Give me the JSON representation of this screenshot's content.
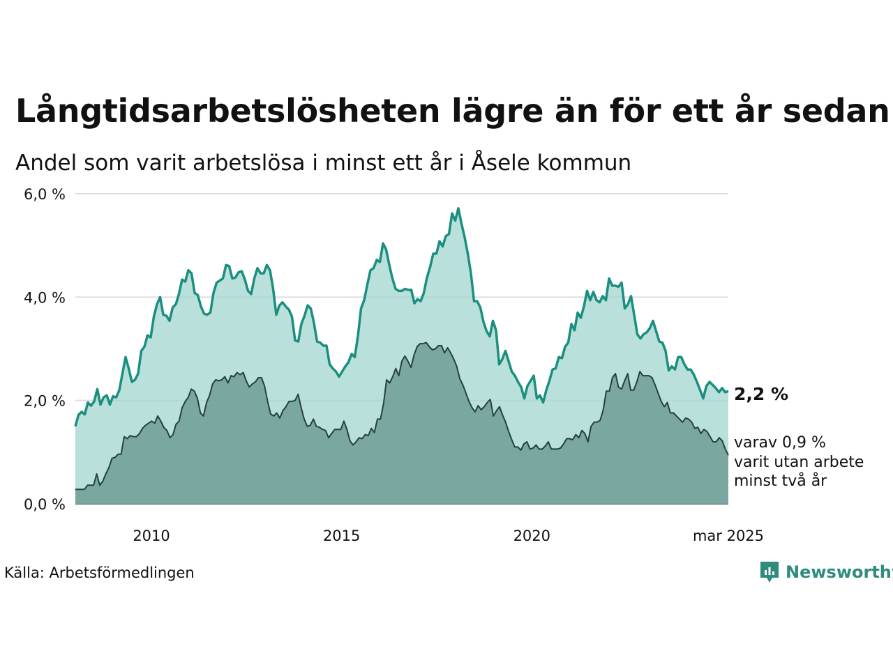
{
  "title": "Långtidsarbetslösheten lägre än för ett år sedan",
  "subtitle": "Andel som varit arbetslösa i minst ett år i Åsele kommun",
  "source": "Källa: Arbetsförmedlingen",
  "brand": "Newsworthy",
  "colors": {
    "line1": "#1a8f7f",
    "fill1": "#a3d5cf",
    "line2": "#24413d",
    "fill2": "#6f9e97",
    "grid": "#dddddd",
    "brand": "#2e8b7e"
  },
  "annotations": {
    "last_value_label": "2,2 %",
    "sub_label_lines": [
      "varav 0,9 %",
      "varit utan arbete",
      "minst två år"
    ]
  },
  "chart_data": {
    "type": "area",
    "x_ticks": [
      {
        "date": "2010-01",
        "label": "2010"
      },
      {
        "date": "2015-01",
        "label": "2015"
      },
      {
        "date": "2020-01",
        "label": "2020"
      },
      {
        "date": "2025-03",
        "label": "mar 2025"
      }
    ],
    "y_ticks": [
      {
        "value": 0,
        "label": "0,0 %"
      },
      {
        "value": 2,
        "label": "2,0 %"
      },
      {
        "value": 4,
        "label": "4,0 %"
      },
      {
        "value": 6,
        "label": "6,0 %"
      }
    ],
    "ylim": [
      0,
      6
    ],
    "grid": true,
    "x_start": "2008-01",
    "x_end": "2025-03",
    "series": [
      {
        "name": "",
        "values": [
          [
            1.5,
            1.72,
            1.78,
            1.73,
            1.96,
            1.9,
            1.98,
            2.22,
            1.92,
            2.06,
            2.1,
            1.92,
            2.08,
            2.06,
            2.2,
            2.52,
            2.84,
            2.62,
            2.36,
            2.4,
            2.52,
            2.96,
            3.04,
            3.26,
            3.22,
            3.62,
            3.86,
            4.0,
            3.66,
            3.64,
            3.54,
            3.8,
            3.86,
            4.06,
            4.34,
            4.3,
            4.52,
            4.46,
            4.08,
            4.04,
            3.82,
            3.68,
            3.66,
            3.7,
            4.08,
            4.28,
            4.32,
            4.36,
            4.62,
            4.6,
            4.36,
            4.38,
            4.48,
            4.5,
            4.34,
            4.12,
            4.06,
            4.36,
            4.56,
            4.46,
            4.46,
            4.62,
            4.52,
            4.16,
            3.66,
            3.84,
            3.9,
            3.82,
            3.76,
            3.62,
            3.16,
            3.14,
            3.48,
            3.64,
            3.84,
            3.78,
            3.5,
            3.14,
            3.12,
            3.06,
            3.06,
            2.7,
            2.62,
            2.56,
            2.46,
            2.56,
            2.66,
            2.74,
            2.9,
            2.84,
            3.24,
            3.78,
            3.94,
            4.24,
            4.52,
            4.56,
            4.72,
            4.68,
            5.04,
            4.92,
            4.62,
            4.36,
            4.16,
            4.12,
            4.12,
            4.16,
            4.14,
            4.14,
            3.88,
            3.96,
            3.92,
            4.08,
            4.38,
            4.58,
            4.84,
            4.84,
            5.08,
            4.98,
            5.18,
            5.22,
            5.62,
            5.48,
            5.72,
            5.42,
            5.16,
            4.84,
            4.46,
            3.92,
            3.92,
            3.8,
            3.52,
            3.34,
            3.24,
            3.54,
            3.36,
            2.7,
            2.8,
            2.96,
            2.76,
            2.56,
            2.48,
            2.36,
            2.26,
            2.04,
            2.28,
            2.38,
            2.48,
            2.04,
            2.1,
            1.96,
            2.2,
            2.38,
            2.6,
            2.62,
            2.84,
            2.82,
            3.04,
            3.12,
            3.48,
            3.36,
            3.7,
            3.6,
            3.82,
            4.12,
            3.94,
            4.1,
            3.94,
            3.9,
            4.02,
            3.94,
            4.36,
            4.22,
            4.22,
            4.2,
            4.28,
            3.78,
            3.86,
            4.02,
            3.66,
            3.28,
            3.2,
            3.28,
            3.32,
            3.4,
            3.54,
            3.34,
            3.14,
            3.12,
            2.96,
            2.58,
            2.66,
            2.6,
            2.84,
            2.84,
            2.7,
            2.6,
            2.6,
            2.5,
            2.36,
            2.2,
            2.04,
            2.28,
            2.36,
            2.3,
            2.24,
            2.16,
            2.24,
            2.16,
            2.18
          ]
        ]
      },
      {
        "name": "",
        "values": [
          [
            0.28,
            0.28,
            0.28,
            0.28,
            0.36,
            0.36,
            0.36,
            0.58,
            0.36,
            0.44,
            0.58,
            0.7,
            0.88,
            0.9,
            0.96,
            0.96,
            1.3,
            1.26,
            1.32,
            1.3,
            1.3,
            1.36,
            1.46,
            1.52,
            1.56,
            1.6,
            1.56,
            1.7,
            1.6,
            1.48,
            1.42,
            1.28,
            1.34,
            1.54,
            1.6,
            1.86,
            1.98,
            2.06,
            2.22,
            2.18,
            2.04,
            1.76,
            1.7,
            1.96,
            2.1,
            2.32,
            2.4,
            2.38,
            2.4,
            2.46,
            2.34,
            2.48,
            2.46,
            2.54,
            2.5,
            2.54,
            2.38,
            2.26,
            2.32,
            2.36,
            2.44,
            2.44,
            2.28,
            1.98,
            1.74,
            1.7,
            1.76,
            1.66,
            1.8,
            1.88,
            1.98,
            1.98,
            2.0,
            2.12,
            1.86,
            1.64,
            1.5,
            1.52,
            1.64,
            1.5,
            1.48,
            1.44,
            1.42,
            1.28,
            1.36,
            1.44,
            1.44,
            1.44,
            1.6,
            1.44,
            1.22,
            1.14,
            1.2,
            1.28,
            1.26,
            1.34,
            1.32,
            1.46,
            1.38,
            1.64,
            1.64,
            1.94,
            2.4,
            2.34,
            2.46,
            2.62,
            2.48,
            2.76,
            2.86,
            2.76,
            2.64,
            2.88,
            3.04,
            3.1,
            3.1,
            3.12,
            3.04,
            2.98,
            3.0,
            3.06,
            3.06,
            2.92,
            3.02,
            2.92,
            2.8,
            2.66,
            2.42,
            2.3,
            2.14,
            1.98,
            1.86,
            1.78,
            1.9,
            1.82,
            1.88,
            1.96,
            2.02,
            1.7,
            1.8,
            1.88,
            1.72,
            1.58,
            1.4,
            1.24,
            1.1,
            1.1,
            1.04,
            1.16,
            1.2,
            1.06,
            1.08,
            1.14,
            1.06,
            1.06,
            1.12,
            1.2,
            1.06,
            1.06,
            1.06,
            1.08,
            1.16,
            1.26,
            1.26,
            1.24,
            1.34,
            1.28,
            1.42,
            1.36,
            1.2,
            1.5,
            1.58,
            1.58,
            1.62,
            1.82,
            2.18,
            2.18,
            2.44,
            2.52,
            2.26,
            2.22,
            2.38,
            2.52,
            2.2,
            2.2,
            2.36,
            2.56,
            2.48,
            2.48,
            2.48,
            2.44,
            2.3,
            2.14,
            1.98,
            1.88,
            1.96,
            1.76,
            1.76,
            1.7,
            1.64,
            1.58,
            1.66,
            1.64,
            1.58,
            1.46,
            1.48,
            1.36,
            1.44,
            1.4,
            1.3,
            1.2,
            1.2,
            1.28,
            1.22,
            1.06,
            0.94
          ]
        ]
      }
    ]
  }
}
